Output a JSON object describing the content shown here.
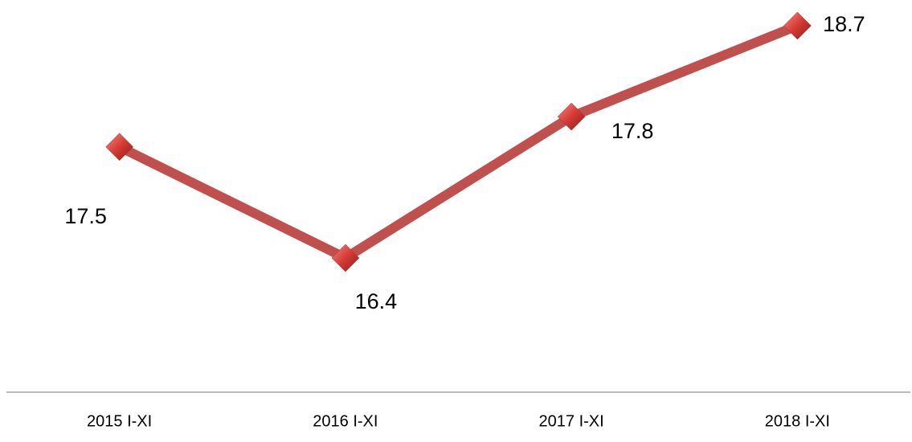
{
  "chart_data": {
    "type": "line",
    "categories": [
      "2015 I-XI",
      "2016 I-XI",
      "2017 I-XI",
      "2018 I-XI"
    ],
    "series": [
      {
        "color": "#c0504d",
        "values": [
          17.5,
          16.4,
          17.8,
          18.7
        ]
      }
    ]
  }
}
